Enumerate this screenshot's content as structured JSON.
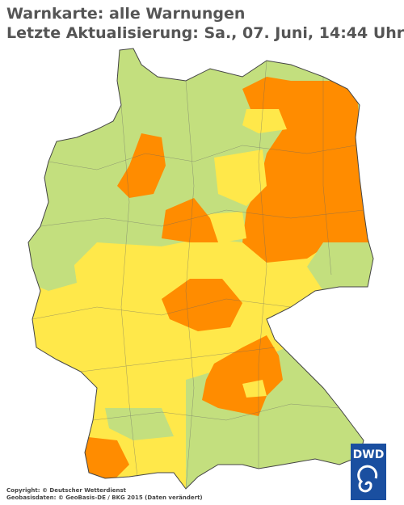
{
  "header": {
    "title": "Warnkarte: alle Warnungen",
    "subtitle": "Letzte Aktualisierung: Sa., 07. Juni, 14:44 Uhr"
  },
  "footer": {
    "copyright": "Copyright: © Deutscher Wetterdienst",
    "geodata": "Geobasisdaten: © GeoBasis-DE / BKG 2015 (Daten verändert)"
  },
  "logo": {
    "label": "DWD"
  }
}
